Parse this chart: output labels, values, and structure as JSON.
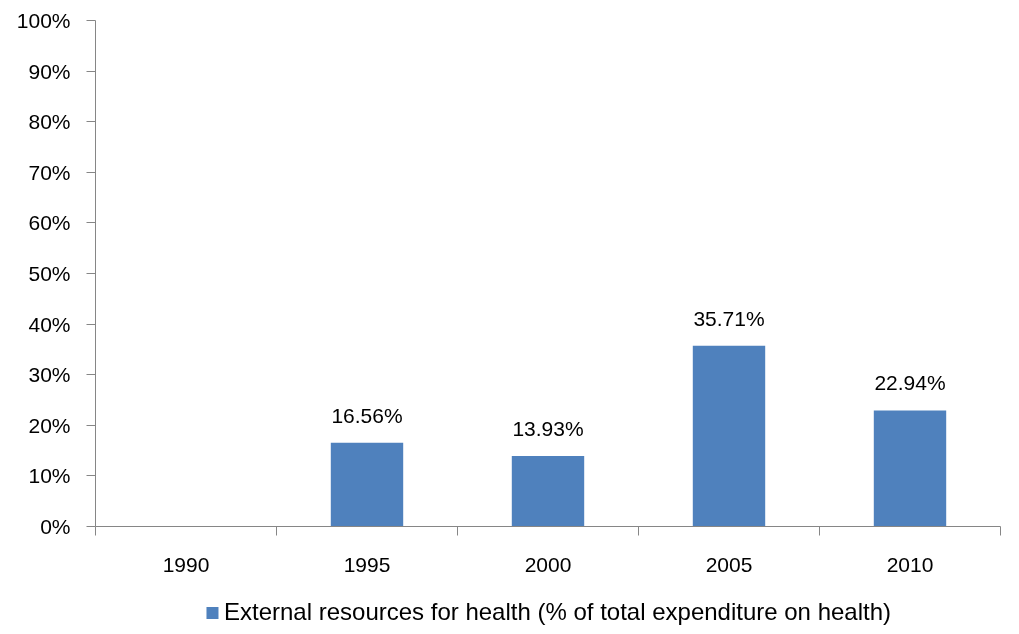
{
  "chart_data": {
    "type": "bar",
    "categories": [
      "1990",
      "1995",
      "2000",
      "2005",
      "2010"
    ],
    "series": [
      {
        "name": "External resources for health (% of total expenditure on health)",
        "color": "#4f81bd",
        "values": [
          null,
          16.56,
          13.93,
          35.71,
          22.94
        ],
        "value_labels": [
          null,
          "16.56%",
          "13.93%",
          "35.71%",
          "22.94%"
        ]
      }
    ],
    "ylim": [
      0,
      100
    ],
    "yticks": [
      {
        "value": 0,
        "label": "0%"
      },
      {
        "value": 10,
        "label": "10%"
      },
      {
        "value": 20,
        "label": "20%"
      },
      {
        "value": 30,
        "label": "30%"
      },
      {
        "value": 40,
        "label": "40%"
      },
      {
        "value": 50,
        "label": "50%"
      },
      {
        "value": 60,
        "label": "60%"
      },
      {
        "value": 70,
        "label": "70%"
      },
      {
        "value": 80,
        "label": "80%"
      },
      {
        "value": 90,
        "label": "90%"
      },
      {
        "value": 100,
        "label": "100%"
      }
    ],
    "legend": "bottom"
  }
}
